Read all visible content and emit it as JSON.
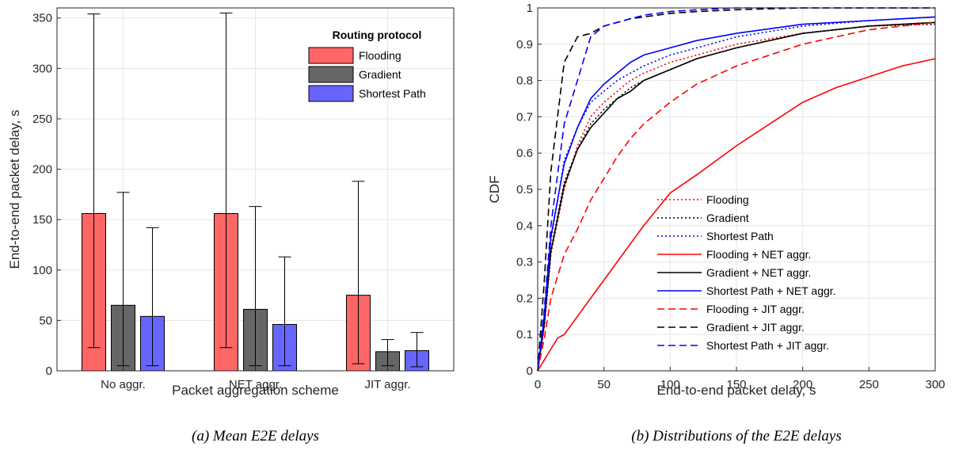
{
  "chart_data": [
    {
      "type": "bar",
      "caption": "(a) Mean E2E delays",
      "xlabel": "Packet aggregation scheme",
      "ylabel": "End-to-end packet delay, s",
      "ylim": [
        0,
        360
      ],
      "yticks": [
        0,
        50,
        100,
        150,
        200,
        250,
        300,
        350
      ],
      "categories": [
        "No aggr.",
        "NET aggr.",
        "JIT aggr."
      ],
      "grid": true,
      "legend": {
        "title": "Routing protocol",
        "placement": "top-right"
      },
      "series": [
        {
          "name": "Flooding",
          "color": "#ff6666",
          "values": [
            156,
            156,
            75
          ],
          "err_low": [
            23,
            23,
            7
          ],
          "err_high": [
            354,
            355,
            188
          ]
        },
        {
          "name": "Gradient",
          "color": "#666666",
          "values": [
            65,
            61,
            19
          ],
          "err_low": [
            5,
            5,
            5
          ],
          "err_high": [
            177,
            163,
            31
          ]
        },
        {
          "name": "Shortest Path",
          "color": "#6666ff",
          "values": [
            54,
            46,
            20
          ],
          "err_low": [
            5,
            5,
            4
          ],
          "err_high": [
            142,
            113,
            38
          ]
        }
      ]
    },
    {
      "type": "line",
      "caption": "(b) Distributions of the E2E delays",
      "xlabel": "End-to-end packet delay, s",
      "ylabel": "CDF",
      "xlim": [
        0,
        300
      ],
      "ylim": [
        0,
        1
      ],
      "xticks": [
        0,
        50,
        100,
        150,
        200,
        250,
        300
      ],
      "yticks": [
        "0",
        "0.1",
        "0.2",
        "0.3",
        "0.4",
        "0.5",
        "0.6",
        "0.7",
        "0.8",
        "0.9",
        "1"
      ],
      "grid": true,
      "legend": {
        "placement": "bottom-center"
      },
      "series": [
        {
          "name": "Flooding",
          "color": "#ff0000",
          "dash": "dotted",
          "x": [
            0,
            5,
            10,
            20,
            30,
            40,
            50,
            60,
            70,
            80,
            100,
            120,
            150,
            200,
            250,
            300
          ],
          "y": [
            0,
            0.12,
            0.32,
            0.5,
            0.62,
            0.7,
            0.74,
            0.77,
            0.8,
            0.82,
            0.85,
            0.87,
            0.9,
            0.93,
            0.95,
            0.96
          ]
        },
        {
          "name": "Gradient",
          "color": "#000000",
          "dash": "dotted",
          "x": [
            0,
            5,
            10,
            20,
            30,
            40,
            50,
            60,
            70,
            80,
            100,
            120,
            150,
            200,
            250,
            300
          ],
          "y": [
            0,
            0.13,
            0.33,
            0.52,
            0.61,
            0.68,
            0.72,
            0.75,
            0.78,
            0.8,
            0.83,
            0.86,
            0.89,
            0.93,
            0.95,
            0.955
          ]
        },
        {
          "name": "Shortest Path",
          "color": "#0000ff",
          "dash": "dotted",
          "x": [
            0,
            5,
            10,
            20,
            30,
            40,
            50,
            60,
            70,
            80,
            100,
            120,
            150,
            200,
            250,
            300
          ],
          "y": [
            0,
            0.15,
            0.36,
            0.58,
            0.67,
            0.74,
            0.77,
            0.8,
            0.82,
            0.84,
            0.87,
            0.89,
            0.92,
            0.95,
            0.965,
            0.975
          ]
        },
        {
          "name": "Flooding + NET aggr.",
          "color": "#ff0000",
          "dash": "solid",
          "x": [
            0,
            5,
            10,
            15,
            20,
            30,
            40,
            50,
            60,
            70,
            80,
            100,
            120,
            150,
            175,
            200,
            225,
            250,
            275,
            300
          ],
          "y": [
            0,
            0.03,
            0.06,
            0.09,
            0.1,
            0.15,
            0.2,
            0.25,
            0.3,
            0.35,
            0.4,
            0.49,
            0.54,
            0.62,
            0.68,
            0.74,
            0.78,
            0.81,
            0.84,
            0.86
          ]
        },
        {
          "name": "Gradient + NET aggr.",
          "color": "#000000",
          "dash": "solid",
          "x": [
            0,
            5,
            10,
            20,
            30,
            40,
            50,
            60,
            70,
            80,
            100,
            120,
            150,
            200,
            250,
            300
          ],
          "y": [
            0,
            0.13,
            0.33,
            0.51,
            0.61,
            0.67,
            0.71,
            0.75,
            0.77,
            0.8,
            0.83,
            0.86,
            0.89,
            0.93,
            0.95,
            0.96
          ]
        },
        {
          "name": "Shortest Path  + NET aggr.",
          "color": "#0000ff",
          "dash": "solid",
          "x": [
            0,
            5,
            10,
            20,
            30,
            40,
            50,
            60,
            70,
            80,
            100,
            120,
            150,
            200,
            250,
            300
          ],
          "y": [
            0,
            0.15,
            0.37,
            0.57,
            0.67,
            0.75,
            0.79,
            0.82,
            0.85,
            0.87,
            0.89,
            0.91,
            0.93,
            0.955,
            0.965,
            0.975
          ]
        },
        {
          "name": "Flooding + JIT aggr.",
          "color": "#ff0000",
          "dash": "dashed",
          "x": [
            0,
            5,
            10,
            20,
            30,
            40,
            50,
            60,
            70,
            80,
            100,
            120,
            150,
            200,
            250,
            300
          ],
          "y": [
            0,
            0.09,
            0.2,
            0.32,
            0.39,
            0.47,
            0.53,
            0.59,
            0.64,
            0.68,
            0.74,
            0.79,
            0.84,
            0.9,
            0.94,
            0.96
          ]
        },
        {
          "name": "Gradient + JIT aggr.",
          "color": "#000000",
          "dash": "dashed",
          "x": [
            0,
            5,
            10,
            20,
            30,
            40,
            50,
            60,
            70,
            80,
            100,
            120,
            150,
            200,
            250,
            300
          ],
          "y": [
            0,
            0.25,
            0.55,
            0.85,
            0.92,
            0.93,
            0.95,
            0.96,
            0.97,
            0.975,
            0.985,
            0.99,
            0.995,
            1,
            1,
            1
          ]
        },
        {
          "name": "Shortest Path  + JIT aggr.",
          "color": "#0000ff",
          "dash": "dashed",
          "x": [
            0,
            5,
            10,
            20,
            30,
            40,
            50,
            60,
            70,
            80,
            100,
            120,
            150,
            200,
            250,
            300
          ],
          "y": [
            0,
            0.17,
            0.4,
            0.68,
            0.8,
            0.92,
            0.95,
            0.96,
            0.97,
            0.98,
            0.99,
            0.995,
            1,
            1,
            1,
            1
          ]
        }
      ]
    }
  ]
}
